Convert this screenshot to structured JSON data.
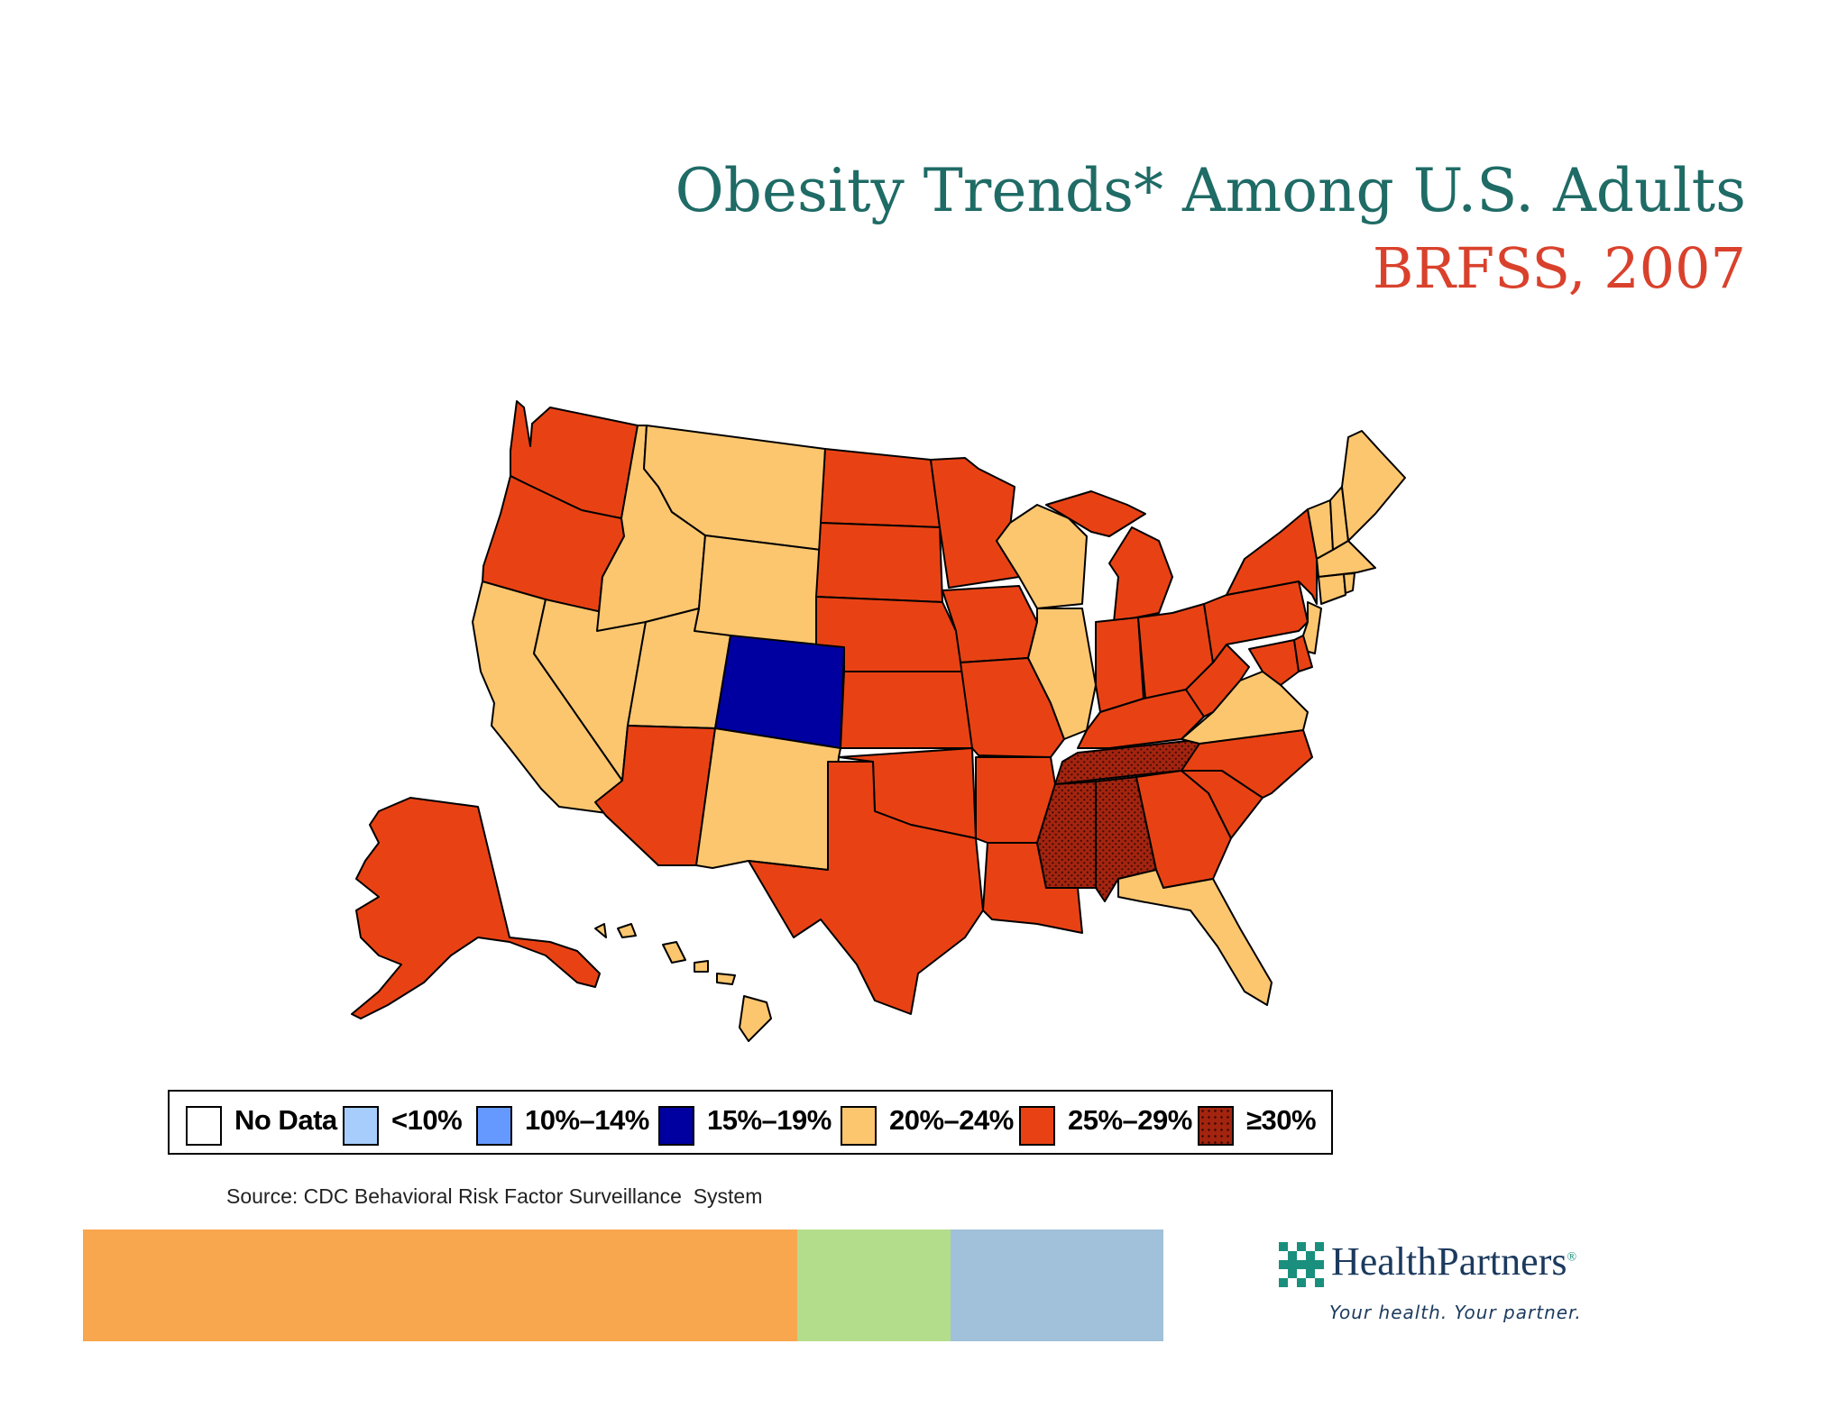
{
  "title": {
    "line1": "Obesity Trends* Among U.S. Adults",
    "line2": "BRFSS, 2007"
  },
  "colors": {
    "no_data": "#ffffff",
    "lt10": "#a6cdfb",
    "p10_14": "#6699ff",
    "p15_19": "#0000a0",
    "p20_24": "#fcc66f",
    "p25_29": "#e84214",
    "gte30": "#a3240f",
    "title_green": "#1f6b66",
    "title_red": "#d9412c",
    "bar_orange": "#f8a74e",
    "bar_green": "#b3dd8b",
    "bar_blue": "#a0c1d9"
  },
  "legend": [
    {
      "label": "No Data",
      "key": "no_data"
    },
    {
      "label": "<10%",
      "key": "lt10"
    },
    {
      "label": "10%–14%",
      "key": "p10_14"
    },
    {
      "label": "15%–19%",
      "key": "p15_19"
    },
    {
      "label": "20%–24%",
      "key": "p20_24"
    },
    {
      "label": "25%–29%",
      "key": "p25_29"
    },
    {
      "label": "≥30%",
      "key": "gte30"
    }
  ],
  "state_categories": {
    "WA": "p25_29",
    "OR": "p25_29",
    "CA": "p20_24",
    "ID": "p20_24",
    "NV": "p20_24",
    "MT": "p20_24",
    "WY": "p20_24",
    "UT": "p20_24",
    "CO": "p15_19",
    "AZ": "p25_29",
    "NM": "p20_24",
    "ND": "p25_29",
    "SD": "p25_29",
    "NE": "p25_29",
    "KS": "p25_29",
    "OK": "p25_29",
    "TX": "p25_29",
    "MN": "p25_29",
    "IA": "p25_29",
    "MO": "p25_29",
    "AR": "p25_29",
    "LA": "p25_29",
    "WI": "p20_24",
    "IL": "p20_24",
    "MI": "p25_29",
    "IN": "p25_29",
    "OH": "p25_29",
    "KY": "p25_29",
    "TN": "gte30",
    "MS": "gte30",
    "AL": "gte30",
    "GA": "p25_29",
    "FL": "p20_24",
    "SC": "p25_29",
    "NC": "p25_29",
    "VA": "p20_24",
    "WV": "p25_29",
    "PA": "p25_29",
    "NY": "p25_29",
    "MD": "p25_29",
    "DE": "p25_29",
    "NJ": "p20_24",
    "CT": "p20_24",
    "RI": "p20_24",
    "MA": "p20_24",
    "VT": "p20_24",
    "NH": "p20_24",
    "ME": "p20_24",
    "AK": "p25_29",
    "HI": "p20_24"
  },
  "source": "Source: CDC Behavioral Risk Factor Surveillance  System",
  "logo": {
    "name": "HealthPartners",
    "mark": "®",
    "tagline": "Your health. Your partner."
  }
}
